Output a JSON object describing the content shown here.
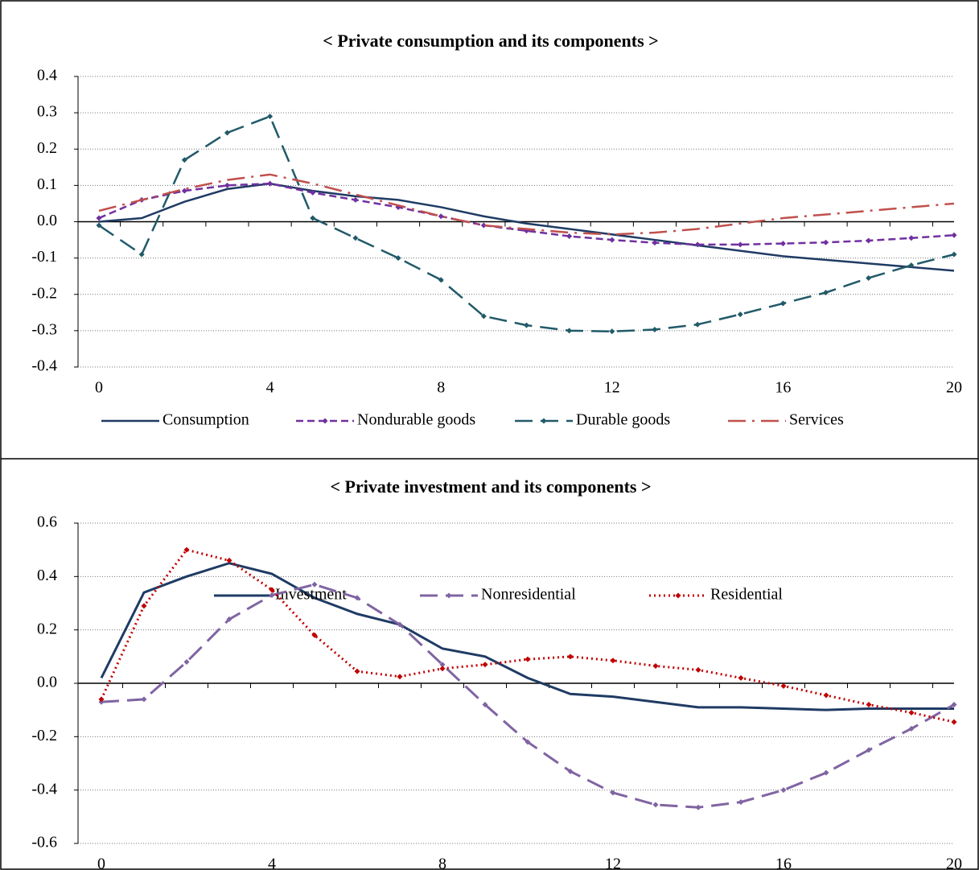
{
  "chart_data": [
    {
      "type": "line",
      "title": "< Private consumption and its components >",
      "x": [
        0,
        1,
        2,
        3,
        4,
        5,
        6,
        7,
        8,
        9,
        10,
        11,
        12,
        13,
        14,
        15,
        16,
        17,
        18,
        19,
        20
      ],
      "xlim": [
        0,
        20
      ],
      "xticks": [
        0,
        4,
        8,
        12,
        16,
        20
      ],
      "ylim": [
        -0.4,
        0.4
      ],
      "yticks": [
        0.4,
        0.3,
        0.2,
        0.1,
        {
          "value": 0,
          "label": "0.0"
        },
        -0.1,
        -0.2,
        -0.3,
        -0.4
      ],
      "grid": true,
      "series": [
        {
          "name": "Consumption",
          "color": "#1f3b64",
          "dash": "solid",
          "marker": false,
          "values": [
            0.0,
            0.01,
            0.055,
            0.09,
            0.105,
            0.085,
            0.07,
            0.06,
            0.04,
            0.015,
            -0.005,
            -0.02,
            -0.035,
            -0.05,
            -0.065,
            -0.08,
            -0.095,
            -0.105,
            -0.115,
            -0.125,
            -0.135
          ]
        },
        {
          "name": "Nondurable goods",
          "color": "#7030a0",
          "dash": "dash",
          "marker": true,
          "values": [
            0.01,
            0.06,
            0.085,
            0.1,
            0.105,
            0.08,
            0.06,
            0.04,
            0.015,
            -0.01,
            -0.025,
            -0.04,
            -0.05,
            -0.058,
            -0.063,
            -0.063,
            -0.06,
            -0.057,
            -0.052,
            -0.045,
            -0.037
          ]
        },
        {
          "name": "Durable goods",
          "color": "#215a69",
          "dash": "longdash",
          "marker": true,
          "values": [
            -0.01,
            -0.09,
            0.17,
            0.245,
            0.29,
            0.01,
            -0.045,
            -0.1,
            -0.16,
            -0.26,
            -0.285,
            -0.3,
            -0.302,
            -0.297,
            -0.283,
            -0.255,
            -0.225,
            -0.195,
            -0.155,
            -0.12,
            -0.09
          ]
        },
        {
          "name": "Services",
          "color": "#c0504d",
          "dash": "dashdot",
          "marker": false,
          "values": [
            0.03,
            0.06,
            0.09,
            0.115,
            0.13,
            0.105,
            0.075,
            0.045,
            0.015,
            -0.01,
            -0.02,
            -0.03,
            -0.035,
            -0.03,
            -0.02,
            -0.005,
            0.01,
            0.02,
            0.03,
            0.04,
            0.05
          ]
        }
      ]
    },
    {
      "type": "line",
      "title": "< Private investment and its components >",
      "x": [
        0,
        1,
        2,
        3,
        4,
        5,
        6,
        7,
        8,
        9,
        10,
        11,
        12,
        13,
        14,
        15,
        16,
        17,
        18,
        19,
        20
      ],
      "xlim": [
        0,
        20
      ],
      "xticks": [
        0,
        4,
        8,
        12,
        16,
        20
      ],
      "ylim": [
        -0.6,
        0.6
      ],
      "yticks": [
        0.6,
        0.4,
        0.2,
        {
          "value": 0,
          "label": "0.0"
        },
        -0.2,
        -0.4,
        -0.6
      ],
      "grid": true,
      "series": [
        {
          "name": "Investment",
          "color": "#1f3b64",
          "dash": "solid",
          "marker": false,
          "width": 3,
          "values": [
            0.02,
            0.34,
            0.4,
            0.45,
            0.41,
            0.32,
            0.26,
            0.22,
            0.13,
            0.1,
            0.02,
            -0.04,
            -0.05,
            -0.07,
            -0.09,
            -0.09,
            -0.095,
            -0.1,
            -0.095,
            -0.095,
            -0.095
          ]
        },
        {
          "name": "Nonresidential",
          "color": "#8064a2",
          "dash": "longdash",
          "marker": true,
          "width": 3,
          "values": [
            -0.07,
            -0.06,
            0.08,
            0.24,
            0.33,
            0.37,
            0.32,
            0.22,
            0.07,
            -0.08,
            -0.22,
            -0.33,
            -0.41,
            -0.455,
            -0.465,
            -0.445,
            -0.4,
            -0.335,
            -0.25,
            -0.17,
            -0.08
          ]
        },
        {
          "name": "Residential",
          "color": "#c00000",
          "dash": "dot",
          "marker": true,
          "width": 3,
          "values": [
            -0.06,
            0.29,
            0.5,
            0.46,
            0.35,
            0.18,
            0.045,
            0.025,
            0.055,
            0.07,
            0.09,
            0.1,
            0.085,
            0.065,
            0.05,
            0.02,
            -0.01,
            -0.045,
            -0.08,
            -0.11,
            -0.145
          ]
        }
      ]
    }
  ]
}
